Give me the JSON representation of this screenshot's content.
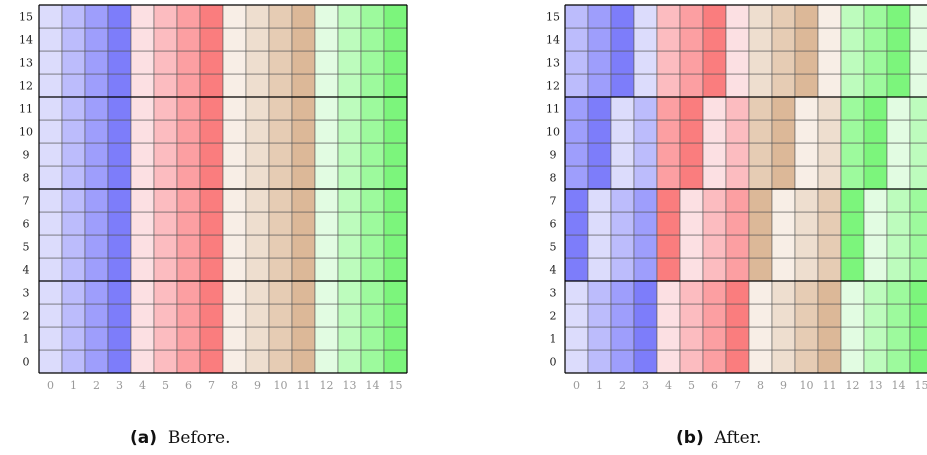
{
  "panels": [
    {
      "caption_label": "(a)",
      "caption_text": "Before.",
      "row_labels": [
        "0",
        "1",
        "2",
        "3",
        "4",
        "5",
        "6",
        "7",
        "8",
        "9",
        "10",
        "11",
        "12",
        "13",
        "14",
        "15"
      ],
      "col_labels": [
        "0",
        "1",
        "2",
        "3",
        "4",
        "5",
        "6",
        "7",
        "8",
        "9",
        "10",
        "11",
        "12",
        "13",
        "14",
        "15"
      ]
    },
    {
      "caption_label": "(b)",
      "caption_text": "After.",
      "row_labels": [
        "0",
        "1",
        "2",
        "3",
        "4",
        "5",
        "6",
        "7",
        "8",
        "9",
        "10",
        "11",
        "12",
        "13",
        "14",
        "15"
      ],
      "col_labels": [
        "0",
        "1",
        "2",
        "3",
        "4",
        "5",
        "6",
        "7",
        "8",
        "9",
        "10",
        "11",
        "12",
        "13",
        "14",
        "15"
      ]
    }
  ],
  "colors": {
    "blue": [
      "#dcdcfc",
      "#bcbcfc",
      "#9e9efc",
      "#7d7dfa"
    ],
    "red": [
      "#fce0e3",
      "#fcbcc0",
      "#fc9fa2",
      "#fa7d7e"
    ],
    "tan": [
      "#f8eee6",
      "#eedecf",
      "#e6ccb4",
      "#dcb898"
    ],
    "green": [
      "#e2fce2",
      "#bdfcbd",
      "#9dfa9d",
      "#7cf57c"
    ],
    "grid_line": "#555555",
    "block_line": "#000000"
  }
}
